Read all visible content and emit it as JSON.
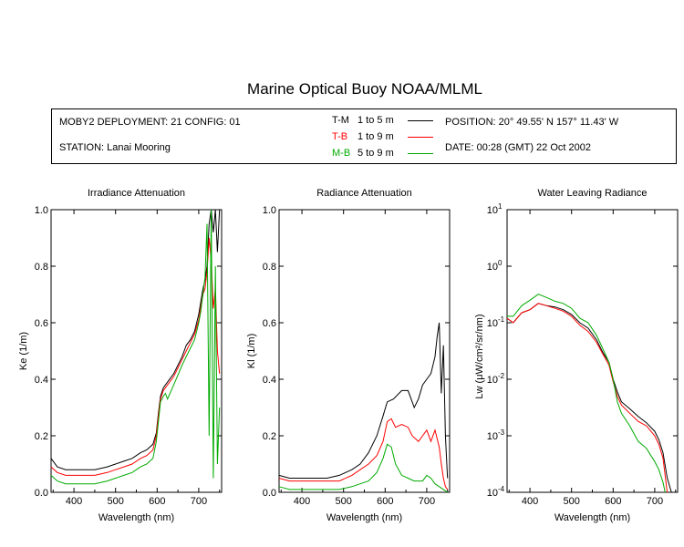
{
  "title": "Marine Optical Buoy NOAA/MLML",
  "info": {
    "deployment": "MOBY2 DEPLOYMENT: 21 CONFIG: 01",
    "station": "STATION: Lanai Mooring",
    "position": "POSITION: 20° 49.55' N   157° 11.43' W",
    "date": "DATE: 00:28 (GMT) 22 Oct 2002"
  },
  "legend": [
    {
      "code": "T-M",
      "range": "1 to 5  m",
      "color": "#000000"
    },
    {
      "code": "T-B",
      "range": "1 to 9  m",
      "color": "#ff0000"
    },
    {
      "code": "M-B",
      "range": "5 to 9  m",
      "color": "#00aa00"
    }
  ],
  "chart_data": [
    {
      "type": "line",
      "title": "Irradiance Attenuation",
      "xlabel": "Wavelength (nm)",
      "ylabel": "Ke  (1/m)",
      "xlim": [
        345,
        755
      ],
      "ylim": [
        0.0,
        1.0
      ],
      "xticks": [
        400,
        500,
        600,
        700
      ],
      "yticks": [
        "0.0",
        "0.2",
        "0.4",
        "0.6",
        "0.8",
        "1.0"
      ],
      "yvals": [
        0,
        0.2,
        0.4,
        0.6,
        0.8,
        1.0
      ],
      "log": false,
      "series": [
        {
          "name": "T-M",
          "color": "#000000",
          "x": [
            345,
            360,
            380,
            400,
            420,
            450,
            480,
            500,
            520,
            540,
            560,
            575,
            590,
            598,
            603,
            608,
            615,
            620,
            640,
            660,
            670,
            680,
            690,
            700,
            710,
            715,
            720,
            725,
            730,
            735,
            740,
            745,
            750
          ],
          "y": [
            0.12,
            0.09,
            0.08,
            0.08,
            0.08,
            0.08,
            0.09,
            0.1,
            0.11,
            0.12,
            0.14,
            0.15,
            0.17,
            0.21,
            0.28,
            0.34,
            0.37,
            0.38,
            0.42,
            0.48,
            0.52,
            0.54,
            0.57,
            0.63,
            0.72,
            0.75,
            0.8,
            0.95,
            1.0,
            0.92,
            1.0,
            0.85,
            1.0
          ]
        },
        {
          "name": "T-B",
          "color": "#ff0000",
          "x": [
            345,
            360,
            380,
            400,
            420,
            450,
            480,
            500,
            520,
            540,
            560,
            575,
            590,
            598,
            603,
            608,
            615,
            620,
            640,
            660,
            670,
            680,
            690,
            700,
            710,
            715,
            720,
            725,
            730,
            735,
            740,
            745,
            750
          ],
          "y": [
            0.09,
            0.07,
            0.06,
            0.06,
            0.06,
            0.06,
            0.07,
            0.08,
            0.09,
            0.1,
            0.12,
            0.13,
            0.15,
            0.2,
            0.27,
            0.33,
            0.36,
            0.37,
            0.41,
            0.47,
            0.5,
            0.53,
            0.56,
            0.61,
            0.7,
            0.72,
            0.78,
            0.9,
            0.82,
            0.65,
            0.72,
            0.5,
            0.42
          ]
        },
        {
          "name": "M-B",
          "color": "#00aa00",
          "x": [
            345,
            360,
            380,
            400,
            420,
            450,
            480,
            500,
            520,
            540,
            560,
            575,
            590,
            598,
            603,
            608,
            615,
            620,
            625,
            640,
            660,
            670,
            680,
            690,
            700,
            705,
            710,
            715,
            720,
            725,
            730,
            735,
            740,
            745,
            750
          ],
          "y": [
            0.06,
            0.04,
            0.03,
            0.03,
            0.03,
            0.03,
            0.04,
            0.05,
            0.06,
            0.07,
            0.09,
            0.1,
            0.12,
            0.18,
            0.25,
            0.32,
            0.34,
            0.35,
            0.33,
            0.38,
            0.45,
            0.48,
            0.51,
            0.54,
            0.6,
            0.64,
            0.7,
            0.76,
            0.95,
            0.2,
            1.0,
            0.05,
            0.8,
            0.1,
            0.3
          ]
        }
      ]
    },
    {
      "type": "line",
      "title": "Radiance Attenuation",
      "xlabel": "Wavelength (nm)",
      "ylabel": "Kl  (1/m)",
      "xlim": [
        345,
        755
      ],
      "ylim": [
        0.0,
        1.0
      ],
      "xticks": [
        400,
        500,
        600,
        700
      ],
      "yticks": [
        "0.0",
        "0.2",
        "0.4",
        "0.6",
        "0.8",
        "1.0"
      ],
      "yvals": [
        0,
        0.2,
        0.4,
        0.6,
        0.8,
        1.0
      ],
      "log": false,
      "series": [
        {
          "name": "T-M",
          "color": "#000000",
          "x": [
            345,
            370,
            400,
            430,
            460,
            490,
            520,
            540,
            560,
            580,
            595,
            605,
            620,
            640,
            655,
            665,
            670,
            680,
            690,
            700,
            710,
            720,
            725,
            730,
            735,
            740,
            745,
            750
          ],
          "y": [
            0.06,
            0.05,
            0.05,
            0.05,
            0.05,
            0.06,
            0.08,
            0.1,
            0.14,
            0.2,
            0.27,
            0.32,
            0.33,
            0.36,
            0.36,
            0.32,
            0.3,
            0.33,
            0.38,
            0.4,
            0.42,
            0.48,
            0.55,
            0.6,
            0.35,
            0.52,
            0.2,
            0.05
          ]
        },
        {
          "name": "T-B",
          "color": "#ff0000",
          "x": [
            345,
            370,
            400,
            430,
            460,
            490,
            520,
            540,
            560,
            580,
            595,
            605,
            615,
            625,
            640,
            655,
            665,
            680,
            690,
            700,
            710,
            720,
            730,
            735,
            740,
            745,
            750
          ],
          "y": [
            0.05,
            0.04,
            0.04,
            0.04,
            0.04,
            0.04,
            0.06,
            0.08,
            0.1,
            0.13,
            0.18,
            0.25,
            0.26,
            0.23,
            0.24,
            0.23,
            0.2,
            0.18,
            0.2,
            0.22,
            0.18,
            0.22,
            0.16,
            0.1,
            0.05,
            0.02,
            0.01
          ]
        },
        {
          "name": "M-B",
          "color": "#00aa00",
          "x": [
            345,
            370,
            400,
            430,
            460,
            490,
            520,
            540,
            560,
            580,
            595,
            605,
            615,
            625,
            640,
            655,
            670,
            690,
            700,
            710,
            720,
            730,
            740,
            750
          ],
          "y": [
            0.02,
            0.01,
            0.01,
            0.01,
            0.01,
            0.01,
            0.02,
            0.03,
            0.04,
            0.07,
            0.12,
            0.17,
            0.16,
            0.1,
            0.06,
            0.05,
            0.04,
            0.04,
            0.06,
            0.05,
            0.03,
            0.02,
            0.01,
            0.0
          ]
        }
      ]
    },
    {
      "type": "line",
      "title": "Water Leaving Radiance",
      "xlabel": "Wavelength (nm)",
      "ylabel": "Lw  (μW/cm²/sr/nm)",
      "xlim": [
        345,
        755
      ],
      "ylim": [
        0.0001,
        10
      ],
      "xticks": [
        400,
        500,
        600,
        700
      ],
      "yticks": [
        "10",
        "10",
        "10",
        "10",
        "10",
        "10"
      ],
      "yticks_exp": [
        "1",
        "0",
        "-1",
        "-2",
        "-3",
        "-4"
      ],
      "yvals": [
        10,
        1,
        0.1,
        0.01,
        0.001,
        0.0001
      ],
      "log": true,
      "series": [
        {
          "name": "T-M",
          "color": "#000000",
          "x": [
            345,
            360,
            380,
            400,
            420,
            440,
            460,
            480,
            500,
            520,
            540,
            560,
            575,
            590,
            600,
            610,
            620,
            640,
            660,
            680,
            700,
            710,
            720,
            730,
            740
          ],
          "y": [
            0.12,
            0.1,
            0.15,
            0.17,
            0.22,
            0.2,
            0.19,
            0.17,
            0.14,
            0.1,
            0.08,
            0.05,
            0.03,
            0.02,
            0.01,
            0.006,
            0.004,
            0.003,
            0.0022,
            0.0017,
            0.0012,
            0.00085,
            0.0005,
            0.00018,
            0.0001
          ]
        },
        {
          "name": "T-B",
          "color": "#ff0000",
          "x": [
            345,
            360,
            380,
            400,
            420,
            440,
            460,
            480,
            500,
            520,
            540,
            560,
            575,
            590,
            600,
            610,
            620,
            640,
            660,
            680,
            700,
            710,
            720,
            730
          ],
          "y": [
            0.12,
            0.1,
            0.15,
            0.17,
            0.22,
            0.2,
            0.18,
            0.16,
            0.13,
            0.09,
            0.07,
            0.045,
            0.028,
            0.018,
            0.009,
            0.005,
            0.0035,
            0.0025,
            0.0018,
            0.0015,
            0.001,
            0.0007,
            0.0004,
            0.0001
          ]
        },
        {
          "name": "M-B",
          "color": "#00aa00",
          "x": [
            345,
            360,
            380,
            400,
            420,
            440,
            460,
            480,
            500,
            520,
            540,
            560,
            575,
            590,
            600,
            610,
            620,
            640,
            660,
            680,
            700,
            710,
            720,
            725
          ],
          "y": [
            0.13,
            0.13,
            0.2,
            0.25,
            0.32,
            0.28,
            0.24,
            0.22,
            0.18,
            0.12,
            0.1,
            0.06,
            0.035,
            0.02,
            0.01,
            0.004,
            0.0025,
            0.0015,
            0.0008,
            0.0006,
            0.00035,
            0.00025,
            0.00015,
            0.0001
          ]
        }
      ]
    }
  ]
}
